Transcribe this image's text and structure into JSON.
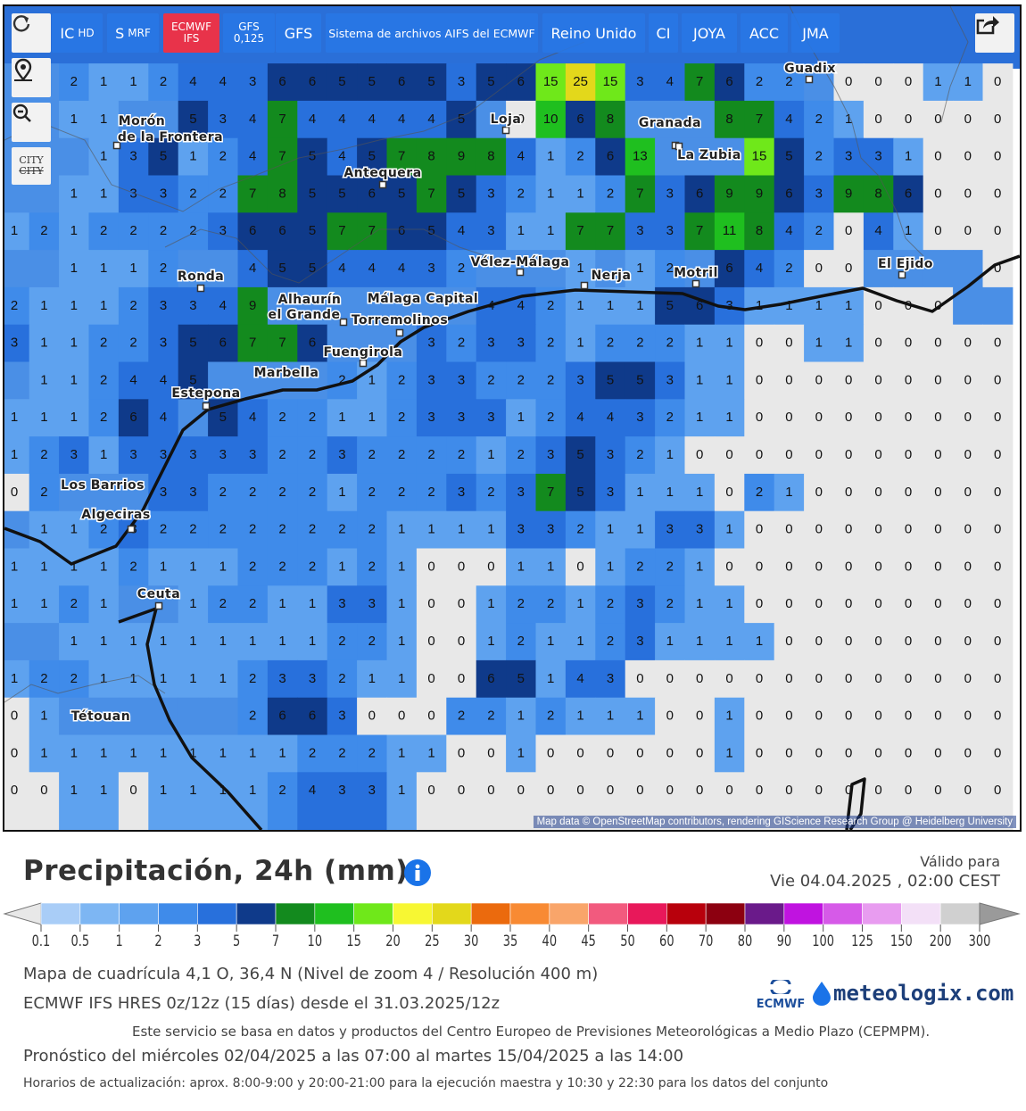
{
  "toolbar": {
    "buttons": [
      {
        "label": "IC",
        "sub": "HD"
      },
      {
        "label": "S",
        "sub": "MRF"
      },
      {
        "label": "ECMWF",
        "sub": "IFS"
      },
      {
        "label": "GFS",
        "sub": "0,125"
      },
      {
        "label": "GFS"
      },
      {
        "label": "Sistema de archivos AIFS del ECMWF"
      },
      {
        "label": "Reino Unido"
      },
      {
        "label": "CI"
      },
      {
        "label": "JOYA"
      },
      {
        "label": "ACC"
      },
      {
        "label": "JMA"
      }
    ],
    "city_button": "CITY"
  },
  "map": {
    "grid": {
      "rows": [
        [
          null,
          null,
          2,
          1,
          1,
          2,
          4,
          4,
          3,
          6,
          6,
          5,
          5,
          6,
          5,
          3,
          5,
          6,
          15,
          25,
          15,
          3,
          4,
          7,
          6,
          2,
          2,
          null,
          0,
          0,
          0,
          1,
          1,
          0
        ],
        [
          null,
          null,
          1,
          1,
          null,
          null,
          5,
          3,
          4,
          7,
          4,
          4,
          4,
          4,
          4,
          5,
          null,
          0,
          10,
          6,
          8,
          null,
          null,
          null,
          8,
          7,
          4,
          2,
          1,
          0,
          0,
          0,
          0,
          0
        ],
        [
          null,
          null,
          null,
          1,
          3,
          5,
          1,
          2,
          4,
          7,
          5,
          4,
          5,
          7,
          8,
          9,
          8,
          4,
          1,
          2,
          6,
          13,
          null,
          null,
          null,
          15,
          5,
          2,
          3,
          3,
          1,
          0,
          0,
          0
        ],
        [
          null,
          null,
          1,
          1,
          3,
          3,
          2,
          2,
          7,
          8,
          5,
          5,
          6,
          5,
          7,
          5,
          3,
          2,
          1,
          1,
          2,
          7,
          3,
          6,
          9,
          9,
          6,
          3,
          9,
          8,
          6,
          0,
          0,
          0
        ],
        [
          1,
          2,
          1,
          2,
          2,
          2,
          2,
          3,
          6,
          6,
          5,
          7,
          7,
          6,
          5,
          4,
          3,
          1,
          1,
          7,
          7,
          3,
          3,
          7,
          11,
          8,
          4,
          2,
          0,
          4,
          1,
          0,
          0,
          0
        ],
        [
          null,
          null,
          1,
          1,
          1,
          2,
          null,
          null,
          4,
          5,
          5,
          4,
          4,
          4,
          3,
          2,
          null,
          null,
          null,
          1,
          null,
          1,
          2,
          null,
          6,
          4,
          2,
          0,
          0,
          null,
          null,
          null,
          null,
          0
        ],
        [
          2,
          1,
          1,
          1,
          2,
          3,
          3,
          4,
          9,
          null,
          null,
          null,
          null,
          null,
          null,
          null,
          4,
          4,
          2,
          1,
          1,
          1,
          5,
          6,
          3,
          1,
          1,
          1,
          1,
          0,
          0,
          0,
          null,
          null
        ],
        [
          3,
          1,
          1,
          2,
          2,
          3,
          5,
          6,
          7,
          7,
          6,
          null,
          null,
          null,
          3,
          2,
          3,
          3,
          2,
          1,
          2,
          2,
          2,
          1,
          1,
          0,
          0,
          1,
          1,
          0,
          0,
          0,
          0,
          0
        ],
        [
          null,
          1,
          1,
          2,
          4,
          4,
          5,
          null,
          null,
          null,
          null,
          2,
          1,
          2,
          3,
          3,
          2,
          2,
          2,
          3,
          5,
          5,
          3,
          1,
          1,
          0,
          0,
          0,
          0,
          0,
          0,
          0,
          0,
          0
        ],
        [
          1,
          1,
          1,
          2,
          6,
          4,
          null,
          5,
          4,
          2,
          2,
          1,
          1,
          2,
          3,
          3,
          3,
          1,
          2,
          4,
          4,
          3,
          2,
          1,
          1,
          0,
          0,
          0,
          0,
          0,
          0,
          0,
          0,
          0
        ],
        [
          1,
          2,
          3,
          1,
          3,
          3,
          3,
          3,
          3,
          2,
          2,
          3,
          2,
          2,
          2,
          2,
          1,
          2,
          3,
          5,
          3,
          2,
          1,
          0,
          0,
          0,
          0,
          0,
          0,
          0,
          0,
          0,
          0,
          0
        ],
        [
          0,
          2,
          null,
          null,
          null,
          3,
          3,
          2,
          2,
          2,
          2,
          1,
          2,
          2,
          2,
          3,
          2,
          3,
          7,
          5,
          3,
          1,
          1,
          1,
          0,
          2,
          1,
          0,
          0,
          0,
          0,
          0,
          0,
          0
        ],
        [
          null,
          1,
          1,
          2,
          3,
          2,
          2,
          2,
          2,
          2,
          2,
          2,
          2,
          1,
          1,
          1,
          1,
          3,
          3,
          2,
          1,
          1,
          3,
          3,
          1,
          0,
          0,
          0,
          0,
          0,
          0,
          0,
          0,
          0
        ],
        [
          1,
          1,
          1,
          1,
          2,
          1,
          1,
          1,
          2,
          2,
          2,
          1,
          2,
          1,
          0,
          0,
          0,
          1,
          1,
          0,
          1,
          2,
          2,
          1,
          0,
          0,
          0,
          0,
          0,
          0,
          0,
          0,
          0,
          0
        ],
        [
          1,
          1,
          2,
          1,
          null,
          null,
          1,
          2,
          2,
          1,
          1,
          3,
          3,
          1,
          0,
          0,
          1,
          2,
          2,
          1,
          2,
          3,
          2,
          1,
          1,
          0,
          0,
          0,
          0,
          0,
          0,
          0,
          0,
          0
        ],
        [
          null,
          null,
          1,
          1,
          1,
          1,
          1,
          1,
          1,
          1,
          1,
          2,
          2,
          1,
          0,
          0,
          1,
          2,
          1,
          1,
          2,
          3,
          1,
          1,
          1,
          1,
          0,
          0,
          0,
          0,
          0,
          0,
          0,
          0
        ],
        [
          1,
          2,
          2,
          1,
          1,
          1,
          1,
          1,
          2,
          3,
          3,
          2,
          1,
          1,
          0,
          0,
          6,
          5,
          1,
          4,
          3,
          0,
          0,
          0,
          0,
          0,
          0,
          0,
          0,
          0,
          0,
          0,
          0,
          0
        ],
        [
          0,
          1,
          null,
          null,
          null,
          null,
          null,
          null,
          2,
          6,
          6,
          3,
          0,
          0,
          0,
          2,
          2,
          1,
          2,
          1,
          1,
          1,
          0,
          0,
          1,
          0,
          0,
          0,
          0,
          0,
          0,
          0,
          0,
          0
        ],
        [
          0,
          1,
          1,
          1,
          1,
          1,
          1,
          1,
          1,
          1,
          2,
          2,
          2,
          1,
          1,
          0,
          0,
          1,
          0,
          0,
          0,
          0,
          0,
          0,
          1,
          0,
          0,
          0,
          0,
          0,
          0,
          0,
          0,
          0
        ],
        [
          0,
          0,
          1,
          1,
          0,
          1,
          1,
          1,
          1,
          2,
          4,
          3,
          3,
          1,
          0,
          0,
          0,
          0,
          0,
          0,
          0,
          0,
          0,
          0,
          0,
          0,
          0,
          0,
          0,
          0,
          0,
          0,
          0,
          0
        ]
      ]
    },
    "places": [
      "Morón",
      "de la Frontera",
      "Antequera",
      "Loja",
      "Granada",
      "Guadix",
      "La Zubia",
      "Ronda",
      "Vélez-Málaga",
      "Nerja",
      "Motril",
      "El Ejido",
      "Alhaurín",
      "el Grande",
      "Málaga Capital",
      "Torremolinos",
      "Fuengirola",
      "Marbella",
      "Estepona",
      "Los Barrios",
      "Algeciras",
      "Ceuta",
      "Tétouan"
    ],
    "attribution": "Map data © OpenStreetMap contributors, rendering GIScience Research Group @ Heidelberg University"
  },
  "legend": {
    "title": "Precipitación, 24h (mm)",
    "valid_label": "Válido para",
    "valid_time": "Vie 04.04.2025 , 02:00 CEST",
    "stops": [
      0.1,
      0.5,
      1,
      2,
      3,
      5,
      7,
      10,
      15,
      20,
      25,
      30,
      35,
      40,
      45,
      50,
      60,
      70,
      80,
      90,
      100,
      125,
      150,
      200,
      300
    ],
    "colors": [
      "#a9cdf7",
      "#7db6f3",
      "#5ea2ef",
      "#3f8bea",
      "#2870dc",
      "#0f3a8a",
      "#138a1e",
      "#1fbf1f",
      "#6fe81a",
      "#f7f733",
      "#e3d81b",
      "#eb6a0d",
      "#f88a33",
      "#f9a56a",
      "#f25a7e",
      "#e8185a",
      "#b8000c",
      "#8c0010",
      "#6a1a8a",
      "#c013e0",
      "#d65ae8",
      "#e89cf0",
      "#f3e0f7",
      "#d0d0d0"
    ],
    "below_color": "#e8e8e8",
    "above_color": "#9a9a9a"
  },
  "info": {
    "lines": [
      "Mapa de cuadrícula 4,1 O, 36,4 N (Nivel de zoom 4 / Resolución 400 m)",
      "ECMWF IFS HRES 0z/12z (15 días) desde el 31.03.2025/12z",
      "Este servicio se basa en datos y productos del Centro Europeo de Previsiones Meteorológicas a Medio Plazo (CEPMPM).",
      "Pronóstico del miércoles 02/04/2025 a las 07:00 al martes 15/04/2025 a las 14:00",
      "Horarios de actualización: aprox. 8:00-9:00 y 20:00-21:00 para la ejecución maestra y 10:30 y 22:30 para los datos del conjunto"
    ]
  },
  "logos": {
    "ecmwf": "ECMWF",
    "meteologix": "meteologix.com"
  }
}
